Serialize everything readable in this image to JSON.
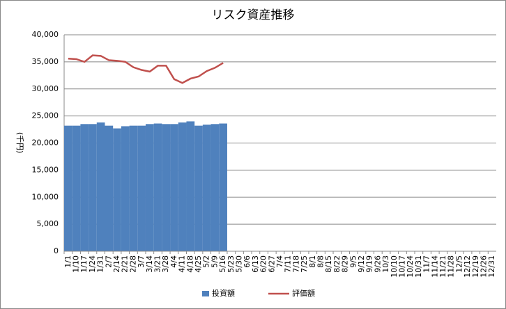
{
  "chart_data": {
    "type": "bar-line",
    "title": "リスク資産推移",
    "y_label": "(千円)",
    "categories": [
      "1/1",
      "1/10",
      "1/17",
      "1/24",
      "1/31",
      "2/7",
      "2/14",
      "2/21",
      "2/28",
      "3/7",
      "3/14",
      "3/21",
      "3/28",
      "4/4",
      "4/11",
      "4/18",
      "4/25",
      "5/2",
      "5/9",
      "5/16",
      "5/23",
      "5/30",
      "6/6",
      "6/13",
      "6/20",
      "6/27",
      "7/4",
      "7/11",
      "7/18",
      "7/25",
      "8/1",
      "8/8",
      "8/15",
      "8/22",
      "8/29",
      "9/5",
      "9/12",
      "9/19",
      "9/26",
      "10/3",
      "10/10",
      "10/17",
      "10/24",
      "10/31",
      "11/7",
      "11/14",
      "11/21",
      "11/28",
      "12/5",
      "12/12",
      "12/19",
      "12/26",
      "12/31"
    ],
    "series": [
      {
        "name": "投資額",
        "type": "bar",
        "color": "#4f81bd",
        "values": [
          23200,
          23200,
          23500,
          23500,
          23800,
          23200,
          22700,
          23100,
          23200,
          23200,
          23500,
          23600,
          23500,
          23500,
          23800,
          24000,
          23200,
          23400,
          23500,
          23600,
          null,
          null,
          null,
          null,
          null,
          null,
          null,
          null,
          null,
          null,
          null,
          null,
          null,
          null,
          null,
          null,
          null,
          null,
          null,
          null,
          null,
          null,
          null,
          null,
          null,
          null,
          null,
          null,
          null,
          null,
          null,
          null,
          null
        ]
      },
      {
        "name": "評価額",
        "type": "line",
        "color": "#c0504d",
        "values": [
          35600,
          35500,
          35000,
          36200,
          36100,
          35300,
          35200,
          35000,
          34000,
          33500,
          33200,
          34300,
          34300,
          31800,
          31100,
          31900,
          32300,
          33300,
          33900,
          34800,
          null,
          null,
          null,
          null,
          null,
          null,
          null,
          null,
          null,
          null,
          null,
          null,
          null,
          null,
          null,
          null,
          null,
          null,
          null,
          null,
          null,
          null,
          null,
          null,
          null,
          null,
          null,
          null,
          null,
          null,
          null,
          null,
          null
        ]
      }
    ],
    "ylim": [
      0,
      40000
    ],
    "yticks": [
      0,
      {
        "value": 5000,
        "label": "5,000"
      },
      {
        "value": 10000,
        "label": "10,000"
      },
      {
        "value": 15000,
        "label": "15,000"
      },
      {
        "value": 20000,
        "label": "20,000"
      },
      {
        "value": 25000,
        "label": "25,000"
      },
      {
        "value": 30000,
        "label": "30,000"
      },
      {
        "value": 35000,
        "label": "35,000"
      },
      {
        "value": 40000,
        "label": "40,000"
      }
    ],
    "grid": true,
    "legend": "bottom"
  }
}
